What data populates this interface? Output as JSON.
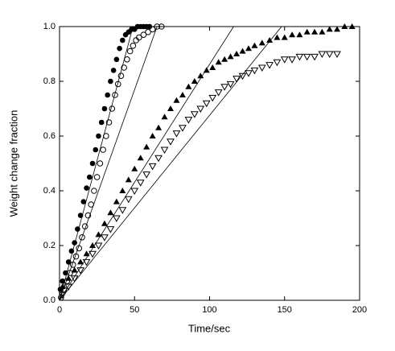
{
  "chart_data": {
    "type": "scatter",
    "xlabel": "Time/sec",
    "ylabel": "Weight change fraction",
    "xlim": [
      0,
      200
    ],
    "ylim": [
      0,
      1
    ],
    "xticks": [
      0,
      50,
      100,
      150,
      200
    ],
    "yticks": [
      {
        "value": 0,
        "label": "0.0"
      },
      0.2,
      0.4,
      0.6,
      0.8,
      {
        "value": 1,
        "label": "1.0"
      }
    ],
    "series": [
      {
        "marker": "filled-circle",
        "color": "#000000",
        "x": [
          0.5,
          2,
          4,
          6,
          8,
          10,
          12,
          14,
          16,
          18,
          20,
          22,
          24,
          26,
          28,
          30,
          32,
          34,
          36,
          38,
          40,
          42,
          44,
          46,
          48,
          50,
          52,
          54,
          56,
          58,
          60
        ],
        "values": [
          0.04,
          0.07,
          0.1,
          0.14,
          0.18,
          0.21,
          0.26,
          0.31,
          0.36,
          0.41,
          0.45,
          0.5,
          0.55,
          0.6,
          0.65,
          0.7,
          0.75,
          0.8,
          0.84,
          0.88,
          0.92,
          0.95,
          0.97,
          0.98,
          0.99,
          0.99,
          1.0,
          1.0,
          1.0,
          1.0,
          1.0
        ]
      },
      {
        "marker": "open-circle",
        "color": "#000000",
        "x": [
          1,
          3,
          5,
          7,
          9,
          11,
          13,
          15,
          17,
          19,
          21,
          23,
          25,
          27,
          29,
          31,
          33,
          35,
          37,
          39,
          41,
          43,
          45,
          47,
          49,
          51,
          53,
          56,
          59,
          62,
          65,
          68
        ],
        "values": [
          0.01,
          0.04,
          0.07,
          0.1,
          0.13,
          0.16,
          0.19,
          0.23,
          0.27,
          0.31,
          0.35,
          0.4,
          0.45,
          0.5,
          0.55,
          0.6,
          0.65,
          0.7,
          0.75,
          0.79,
          0.82,
          0.85,
          0.88,
          0.91,
          0.93,
          0.95,
          0.96,
          0.97,
          0.98,
          0.99,
          1.0,
          1.0
        ]
      },
      {
        "marker": "filled-triangle",
        "color": "#000000",
        "x": [
          2,
          6,
          10,
          14,
          18,
          22,
          26,
          30,
          34,
          38,
          42,
          46,
          50,
          54,
          58,
          62,
          66,
          70,
          74,
          78,
          82,
          86,
          90,
          94,
          98,
          102,
          106,
          110,
          114,
          118,
          122,
          126,
          130,
          135,
          140,
          145,
          150,
          155,
          160,
          165,
          170,
          175,
          180,
          185,
          190,
          195
        ],
        "values": [
          0.05,
          0.08,
          0.11,
          0.14,
          0.17,
          0.2,
          0.24,
          0.28,
          0.32,
          0.36,
          0.4,
          0.44,
          0.48,
          0.52,
          0.56,
          0.6,
          0.63,
          0.67,
          0.7,
          0.73,
          0.75,
          0.78,
          0.8,
          0.82,
          0.84,
          0.85,
          0.87,
          0.88,
          0.89,
          0.9,
          0.91,
          0.92,
          0.93,
          0.94,
          0.95,
          0.96,
          0.96,
          0.97,
          0.97,
          0.98,
          0.98,
          0.98,
          0.99,
          0.99,
          1.0,
          1.0
        ]
      },
      {
        "marker": "open-triangle",
        "color": "#000000",
        "x": [
          2,
          6,
          10,
          14,
          18,
          22,
          26,
          30,
          34,
          38,
          42,
          46,
          50,
          54,
          58,
          62,
          66,
          70,
          74,
          78,
          82,
          86,
          90,
          94,
          98,
          102,
          106,
          110,
          114,
          118,
          122,
          126,
          130,
          135,
          140,
          145,
          150,
          155,
          160,
          165,
          170,
          175,
          180,
          185
        ],
        "values": [
          0.02,
          0.05,
          0.08,
          0.11,
          0.14,
          0.17,
          0.2,
          0.23,
          0.26,
          0.3,
          0.33,
          0.37,
          0.4,
          0.43,
          0.46,
          0.49,
          0.52,
          0.55,
          0.58,
          0.61,
          0.63,
          0.66,
          0.68,
          0.7,
          0.72,
          0.74,
          0.76,
          0.78,
          0.79,
          0.81,
          0.82,
          0.83,
          0.84,
          0.85,
          0.86,
          0.87,
          0.88,
          0.88,
          0.89,
          0.89,
          0.89,
          0.9,
          0.9,
          0.9
        ]
      },
      {
        "marker": "none",
        "color": "#000000",
        "x": [
          0,
          49
        ],
        "values": [
          0,
          1
        ]
      },
      {
        "marker": "none",
        "color": "#000000",
        "x": [
          0,
          65
        ],
        "values": [
          0,
          1
        ]
      },
      {
        "marker": "none",
        "color": "#000000",
        "x": [
          0,
          116
        ],
        "values": [
          0,
          1
        ]
      },
      {
        "marker": "none",
        "color": "#000000",
        "x": [
          0,
          148
        ],
        "values": [
          0,
          1
        ]
      }
    ]
  }
}
